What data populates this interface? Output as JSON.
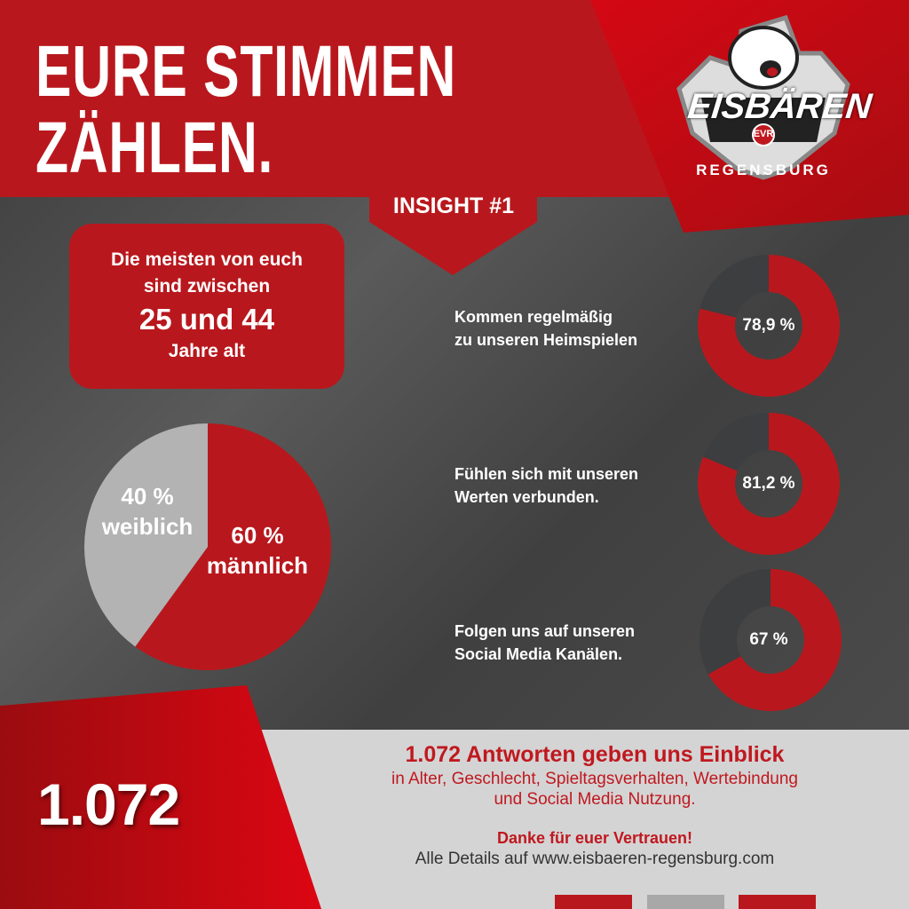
{
  "header": {
    "title_line1": "EURE STIMMEN",
    "title_line2": "ZÄHLEN.",
    "insight_label": "INSIGHT #1"
  },
  "logo": {
    "text": "EISBÄREN",
    "subtext": "REGENSBURG",
    "badge": "EVR"
  },
  "age_box": {
    "line1": "Die meisten von euch",
    "line2": "sind zwischen",
    "highlight": "25 und 44",
    "line4": "Jahre alt"
  },
  "colors": {
    "red": "#b8181d",
    "grey_slice": "#b3b3b3",
    "donut_rest": "#3c3e40",
    "footer_bg": "#d4d4d4"
  },
  "chart_data": [
    {
      "type": "pie",
      "categories": [
        "männlich",
        "weiblich"
      ],
      "values": [
        60,
        40
      ],
      "labels": [
        {
          "value": "60 %",
          "name": "männlich"
        },
        {
          "value": "40 %",
          "name": "weiblich"
        }
      ],
      "colors": [
        "#b8181d",
        "#b3b3b3"
      ]
    },
    {
      "type": "pie",
      "subtype": "donut",
      "items": [
        {
          "line1": "Kommen regelmäßig",
          "line2": "zu unseren Heimspielen",
          "value": 78.9,
          "label": "78,9 %"
        },
        {
          "line1": "Fühlen sich mit unseren",
          "line2": "Werten verbunden.",
          "value": 81.2,
          "label": "81,2 %"
        },
        {
          "line1": "Folgen uns auf unseren",
          "line2": "Social Media Kanälen.",
          "value": 67,
          "label": "67 %"
        }
      ],
      "colors": [
        "#b8181d",
        "#3c3e40"
      ]
    }
  ],
  "footer": {
    "count": "1.072",
    "headline": "1.072 Antworten geben uns Einblick",
    "line2": "in Alter, Geschlecht, Spieltagsverhalten, Wertebindung",
    "line3": "und Social Media Nutzung.",
    "thanks": "Danke für euer Vertrauen!",
    "details": "Alle Details auf www.eisbaeren-regensburg.com"
  }
}
